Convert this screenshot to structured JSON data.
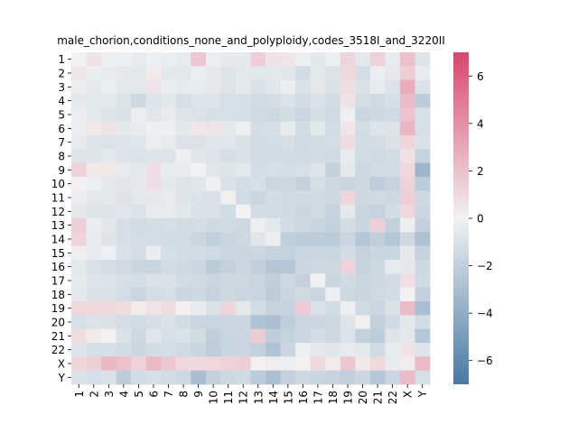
{
  "chart_data": {
    "type": "heatmap",
    "title": "male_chorion,conditions_none_and_polyploidy,codes_3518I_and_3220II",
    "xlabel": "",
    "ylabel": "",
    "categories": [
      "1",
      "2",
      "3",
      "4",
      "5",
      "6",
      "7",
      "8",
      "9",
      "10",
      "11",
      "12",
      "13",
      "14",
      "15",
      "16",
      "17",
      "18",
      "19",
      "20",
      "21",
      "22",
      "X",
      "Y"
    ],
    "colorbar": {
      "vmin": -7,
      "vmax": 7,
      "ticks": [
        -6,
        -4,
        -2,
        0,
        2,
        4,
        6
      ],
      "tick_labels": [
        "−6",
        "−4",
        "−2",
        "0",
        "2",
        "4",
        "6"
      ]
    },
    "colormap": {
      "low": "#4879a3",
      "mid": "#f2f2f2",
      "high": "#d9466d"
    },
    "values": [
      [
        0,
        0.6,
        -0.2,
        -0.2,
        -0.4,
        -0.2,
        -0.3,
        -0.4,
        1.8,
        -0.3,
        -0.5,
        -0.5,
        1.5,
        0.6,
        0.5,
        -0.2,
        -0.6,
        -0.2,
        1.2,
        -0.6,
        1.3,
        -0.4,
        2.0,
        -0.8
      ],
      [
        0.5,
        -0.3,
        -0.4,
        -0.5,
        -0.6,
        0.3,
        -0.5,
        -0.6,
        -0.3,
        -0.5,
        -0.8,
        -0.6,
        -0.6,
        -0.6,
        -0.7,
        -1.3,
        -0.6,
        -0.9,
        1.0,
        -1.2,
        -0.3,
        -0.5,
        1.5,
        -0.4
      ],
      [
        -0.3,
        -0.5,
        -0.3,
        -0.6,
        -0.6,
        0.6,
        -0.3,
        -0.4,
        -0.4,
        -0.5,
        -0.8,
        -0.5,
        -1.0,
        -0.7,
        -0.3,
        -1.0,
        -0.5,
        -1.0,
        0.8,
        -1.0,
        -0.4,
        -0.9,
        2.8,
        -1.0
      ],
      [
        -0.5,
        -0.6,
        -0.6,
        -0.9,
        -1.5,
        -0.8,
        -0.6,
        -1.1,
        -0.8,
        -0.8,
        -1.1,
        -1.1,
        -1.3,
        -1.2,
        -0.9,
        -1.3,
        -1.0,
        -1.3,
        0.6,
        -1.2,
        -1.4,
        -1.1,
        2.2,
        -2.2
      ],
      [
        -0.3,
        -0.6,
        -0.8,
        -1.0,
        -0.3,
        -0.7,
        -0.4,
        -0.8,
        -0.9,
        -1.1,
        -1.1,
        -1.1,
        -1.4,
        -1.5,
        -1.3,
        -1.6,
        -1.2,
        -1.4,
        -0.2,
        -1.6,
        -1.5,
        -1.4,
        1.9,
        -1.1
      ],
      [
        -0.3,
        0.4,
        0.6,
        -0.5,
        -0.4,
        -0.2,
        -0.2,
        -0.6,
        0.5,
        0.6,
        -0.6,
        -0.2,
        -1.2,
        -1.1,
        -0.4,
        -1.3,
        -0.6,
        -1.3,
        0.5,
        -1.2,
        -0.8,
        -0.9,
        2.4,
        -1.1
      ],
      [
        -0.4,
        -0.8,
        -0.9,
        -0.8,
        -0.7,
        -0.3,
        -0.4,
        -0.9,
        -0.9,
        -0.7,
        -0.7,
        -1.0,
        -1.3,
        -1.2,
        -1.1,
        -1.4,
        -1.3,
        -1.2,
        0.9,
        -1.3,
        -1.2,
        -1.0,
        1.2,
        -1.0
      ],
      [
        -0.8,
        -0.8,
        -0.6,
        -0.8,
        -0.9,
        -0.8,
        -0.8,
        -0.2,
        -0.7,
        -0.8,
        -1.1,
        -1.0,
        -1.3,
        -1.3,
        -1.3,
        -1.4,
        -1.3,
        -1.4,
        -0.4,
        -1.3,
        -1.4,
        -1.3,
        0.7,
        -1.8
      ],
      [
        1.3,
        0.4,
        0.4,
        -0.4,
        -0.6,
        0.8,
        -0.4,
        -0.4,
        0.0,
        -0.7,
        -0.8,
        -0.6,
        -1.2,
        -1.1,
        -1.2,
        -1.1,
        -0.8,
        -1.9,
        -0.5,
        -1.5,
        -1.3,
        -1.3,
        1.1,
        -3.5
      ],
      [
        0.1,
        -0.2,
        -0.5,
        -0.7,
        -0.5,
        0.8,
        -0.6,
        -0.8,
        -0.7,
        -0.2,
        -1.0,
        -1.2,
        -1.1,
        -1.6,
        -1.5,
        -1.9,
        -1.1,
        -1.5,
        -1.7,
        -1.5,
        -2.1,
        -1.8,
        1.3,
        -2.2
      ],
      [
        -0.3,
        -0.6,
        -0.5,
        -0.9,
        -0.6,
        -0.5,
        -0.4,
        -0.8,
        -0.9,
        -1.0,
        -0.1,
        -1.3,
        -1.6,
        -1.3,
        -1.4,
        -1.4,
        -1.4,
        -1.5,
        1.2,
        -1.5,
        -1.4,
        -1.5,
        1.5,
        -1.5
      ],
      [
        -0.5,
        -0.8,
        -0.8,
        -0.7,
        -0.9,
        -0.4,
        -0.4,
        -0.6,
        -1.0,
        -1.0,
        -1.3,
        0.0,
        -1.3,
        -1.3,
        -1.4,
        -1.6,
        -1.4,
        -1.8,
        -0.5,
        -1.7,
        -1.8,
        -1.3,
        1.1,
        -1.6
      ],
      [
        1.4,
        -0.3,
        -0.6,
        -1.1,
        -1.3,
        -1.2,
        -1.1,
        -1.3,
        -1.2,
        -1.4,
        -1.4,
        -1.5,
        -0.2,
        -0.6,
        -1.3,
        -1.5,
        -1.7,
        -1.9,
        -1.3,
        -1.7,
        1.4,
        -1.9,
        -0.2,
        -1.9
      ],
      [
        1.2,
        -0.4,
        -0.8,
        -1.1,
        -1.2,
        -1.2,
        -1.3,
        -1.3,
        -1.6,
        -2.0,
        -1.7,
        -1.5,
        -0.7,
        -0.3,
        -2.0,
        -2.2,
        -2.2,
        -2.2,
        -1.6,
        -2.5,
        -2.0,
        -2.5,
        -1.5,
        -2.8
      ],
      [
        0.2,
        -0.4,
        -0.2,
        -1.0,
        -1.2,
        -0.3,
        -1.1,
        -1.2,
        -1.3,
        -1.4,
        -1.6,
        -1.7,
        -1.6,
        -1.8,
        -1.9,
        -1.7,
        -1.6,
        -1.7,
        -1.3,
        -1.8,
        -1.7,
        -1.7,
        -0.5,
        -1.8
      ],
      [
        -0.6,
        -1.0,
        -1.2,
        -1.4,
        -1.7,
        -1.7,
        -1.3,
        -1.4,
        -1.6,
        -2.2,
        -1.9,
        -1.6,
        -2.0,
        -2.5,
        -2.5,
        -1.6,
        -1.5,
        -1.5,
        1.3,
        -1.8,
        -1.5,
        -0.4,
        -0.5,
        -1.5
      ],
      [
        -0.4,
        -0.8,
        -0.9,
        -1.1,
        -1.2,
        -1.0,
        -1.0,
        -1.3,
        -1.4,
        -1.6,
        -1.5,
        -1.5,
        -1.7,
        -2.0,
        -1.5,
        -1.9,
        -0.1,
        -1.7,
        -1.4,
        -1.6,
        -1.5,
        -1.3,
        0.8,
        -1.4
      ],
      [
        -0.5,
        -1.0,
        -1.0,
        -1.2,
        -1.6,
        -1.2,
        -1.1,
        -1.6,
        -1.5,
        -1.8,
        -1.5,
        -1.6,
        -1.7,
        -2.2,
        -1.7,
        -1.4,
        -1.6,
        -0.2,
        -1.5,
        -1.7,
        -1.4,
        -1.3,
        0.0,
        -1.9
      ],
      [
        1.1,
        1.1,
        1.1,
        0.9,
        0.3,
        0.6,
        0.9,
        0.1,
        -0.4,
        -1.0,
        1.2,
        -0.6,
        -1.3,
        -1.8,
        -1.8,
        1.6,
        -1.0,
        -1.3,
        -0.2,
        -1.4,
        -1.6,
        -1.0,
        2.2,
        -3.0
      ],
      [
        -1.1,
        -0.9,
        -1.0,
        -1.2,
        -1.3,
        -1.1,
        -1.0,
        -1.3,
        -1.6,
        -1.7,
        -1.6,
        -1.6,
        -2.7,
        -2.9,
        -2.1,
        -1.6,
        -1.6,
        -1.5,
        -0.8,
        -0.1,
        -1.9,
        -1.4,
        -0.6,
        -1.3
      ],
      [
        0.9,
        0.3,
        0.0,
        -1.0,
        -1.5,
        -0.7,
        -1.1,
        -1.0,
        -1.3,
        -2.0,
        -1.7,
        -1.6,
        1.6,
        -2.1,
        -1.8,
        -1.6,
        -1.3,
        -1.5,
        -0.9,
        -1.9,
        -2.2,
        -0.8,
        -0.6,
        -2.5
      ],
      [
        -0.8,
        -1.1,
        -1.1,
        -1.3,
        -1.6,
        -1.3,
        -1.2,
        -1.4,
        -1.7,
        -2.1,
        -1.7,
        -1.6,
        -1.9,
        -2.7,
        -1.6,
        -0.2,
        -0.5,
        -0.7,
        -0.4,
        -0.6,
        -1.4,
        -0.4,
        0.6,
        -0.8
      ],
      [
        1.2,
        1.4,
        2.3,
        2.0,
        1.3,
        2.3,
        1.7,
        1.1,
        1.0,
        1.1,
        1.3,
        1.4,
        0.1,
        0.2,
        -0.2,
        0.0,
        1.0,
        0.3,
        1.8,
        0.4,
        1.0,
        -0.4,
        0.2,
        2.2
      ],
      [
        -1.0,
        -1.1,
        -1.0,
        -2.2,
        -1.3,
        -1.1,
        -1.3,
        -1.5,
        -3.0,
        -1.9,
        -1.5,
        -1.4,
        -2.2,
        -2.9,
        -1.9,
        -1.5,
        -1.7,
        -1.8,
        -2.0,
        -1.6,
        -2.5,
        -1.6,
        2.2,
        -1.1
      ]
    ]
  }
}
